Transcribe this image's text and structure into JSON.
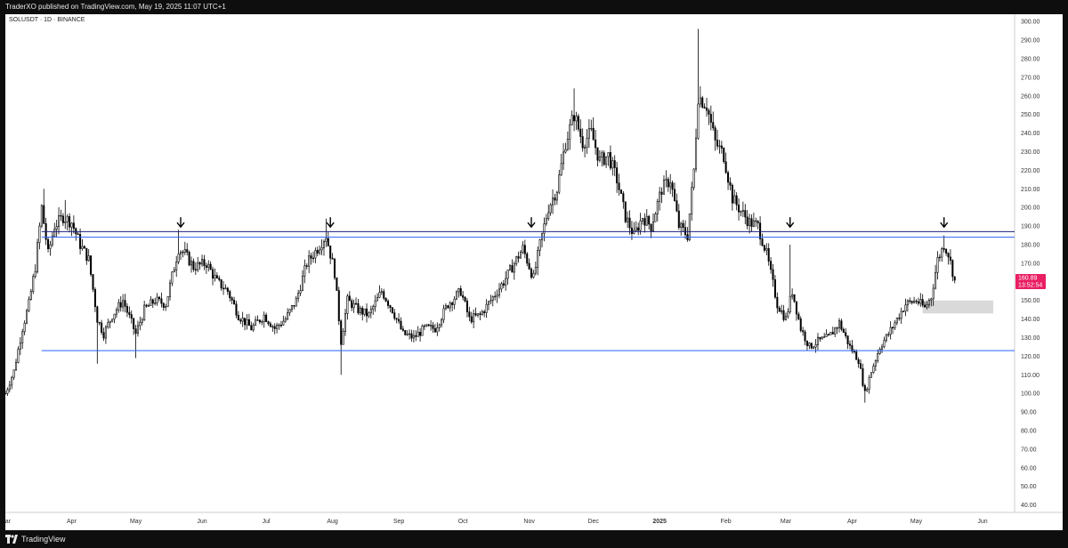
{
  "header": {
    "published": "TraderXO published on TradingView.com, May 19, 2025 11:07 UTC+1"
  },
  "footer": {
    "brand": "TradingView"
  },
  "chart_data": {
    "type": "candlestick",
    "title": "SOLUSDT · 1D · BINANCE",
    "y_ticks": [
      40,
      50,
      60,
      70,
      80,
      90,
      100,
      110,
      120,
      130,
      140,
      150,
      160,
      170,
      180,
      190,
      200,
      210,
      220,
      230,
      240,
      250,
      260,
      270,
      280,
      290,
      300
    ],
    "y_tick_labels": [
      "40.00",
      "50.00",
      "60.00",
      "70.00",
      "80.00",
      "90.00",
      "100.00",
      "110.00",
      "120.00",
      "130.00",
      "140.00",
      "150.00",
      "160.00",
      "170.00",
      "180.00",
      "190.00",
      "200.00",
      "210.00",
      "220.00",
      "230.00",
      "240.00",
      "250.00",
      "260.00",
      "270.00",
      "280.00",
      "290.00",
      "300.00"
    ],
    "ylim": [
      36,
      302
    ],
    "x_start": "2024-03-01",
    "x_end": "2025-06-16",
    "x_ticks": [
      {
        "label": "Mar",
        "date": "2024-03-01"
      },
      {
        "label": "Apr",
        "date": "2024-04-01"
      },
      {
        "label": "May",
        "date": "2024-05-01"
      },
      {
        "label": "Jun",
        "date": "2024-06-01"
      },
      {
        "label": "Jul",
        "date": "2024-07-01"
      },
      {
        "label": "Aug",
        "date": "2024-08-01"
      },
      {
        "label": "Sep",
        "date": "2024-09-01"
      },
      {
        "label": "Oct",
        "date": "2024-10-01"
      },
      {
        "label": "Nov",
        "date": "2024-11-01"
      },
      {
        "label": "Dec",
        "date": "2024-12-01"
      },
      {
        "label": "2025",
        "date": "2025-01-01"
      },
      {
        "label": "Feb",
        "date": "2025-02-01"
      },
      {
        "label": "Mar",
        "date": "2025-03-01"
      },
      {
        "label": "Apr",
        "date": "2025-04-01"
      },
      {
        "label": "May",
        "date": "2025-05-01"
      },
      {
        "label": "Jun",
        "date": "2025-06-01"
      }
    ],
    "price_path": [
      [
        "2024-03-01",
        100
      ],
      [
        "2024-03-05",
        112
      ],
      [
        "2024-03-09",
        135
      ],
      [
        "2024-03-12",
        148
      ],
      [
        "2024-03-15",
        168
      ],
      [
        "2024-03-18",
        200
      ],
      [
        "2024-03-21",
        175
      ],
      [
        "2024-03-24",
        190
      ],
      [
        "2024-03-28",
        195
      ],
      [
        "2024-04-01",
        192
      ],
      [
        "2024-04-05",
        180
      ],
      [
        "2024-04-09",
        172
      ],
      [
        "2024-04-13",
        140
      ],
      [
        "2024-04-16",
        132
      ],
      [
        "2024-04-20",
        142
      ],
      [
        "2024-04-25",
        150
      ],
      [
        "2024-05-01",
        132
      ],
      [
        "2024-05-05",
        145
      ],
      [
        "2024-05-10",
        150
      ],
      [
        "2024-05-15",
        148
      ],
      [
        "2024-05-21",
        178
      ],
      [
        "2024-05-24",
        175
      ],
      [
        "2024-05-28",
        168
      ],
      [
        "2024-06-03",
        170
      ],
      [
        "2024-06-08",
        160
      ],
      [
        "2024-06-13",
        155
      ],
      [
        "2024-06-18",
        142
      ],
      [
        "2024-06-24",
        135
      ],
      [
        "2024-06-30",
        142
      ],
      [
        "2024-07-05",
        135
      ],
      [
        "2024-07-10",
        140
      ],
      [
        "2024-07-15",
        150
      ],
      [
        "2024-07-20",
        170
      ],
      [
        "2024-07-25",
        178
      ],
      [
        "2024-07-29",
        185
      ],
      [
        "2024-08-02",
        165
      ],
      [
        "2024-08-05",
        128
      ],
      [
        "2024-08-08",
        150
      ],
      [
        "2024-08-13",
        145
      ],
      [
        "2024-08-18",
        142
      ],
      [
        "2024-08-24",
        155
      ],
      [
        "2024-08-29",
        145
      ],
      [
        "2024-09-03",
        132
      ],
      [
        "2024-09-08",
        130
      ],
      [
        "2024-09-13",
        135
      ],
      [
        "2024-09-18",
        135
      ],
      [
        "2024-09-24",
        148
      ],
      [
        "2024-09-30",
        155
      ],
      [
        "2024-10-04",
        140
      ],
      [
        "2024-10-09",
        142
      ],
      [
        "2024-10-14",
        150
      ],
      [
        "2024-10-20",
        160
      ],
      [
        "2024-10-25",
        170
      ],
      [
        "2024-10-29",
        178
      ],
      [
        "2024-11-03",
        162
      ],
      [
        "2024-11-06",
        180
      ],
      [
        "2024-11-10",
        200
      ],
      [
        "2024-11-14",
        210
      ],
      [
        "2024-11-18",
        235
      ],
      [
        "2024-11-22",
        250
      ],
      [
        "2024-11-26",
        235
      ],
      [
        "2024-11-30",
        240
      ],
      [
        "2024-12-04",
        225
      ],
      [
        "2024-12-08",
        228
      ],
      [
        "2024-12-12",
        215
      ],
      [
        "2024-12-16",
        195
      ],
      [
        "2024-12-20",
        185
      ],
      [
        "2024-12-24",
        195
      ],
      [
        "2024-12-28",
        190
      ],
      [
        "2025-01-02",
        210
      ],
      [
        "2025-01-06",
        215
      ],
      [
        "2025-01-10",
        190
      ],
      [
        "2025-01-14",
        185
      ],
      [
        "2025-01-17",
        220
      ],
      [
        "2025-01-19",
        260
      ],
      [
        "2025-01-23",
        255
      ],
      [
        "2025-01-27",
        235
      ],
      [
        "2025-01-31",
        228
      ],
      [
        "2025-02-04",
        205
      ],
      [
        "2025-02-08",
        198
      ],
      [
        "2025-02-12",
        192
      ],
      [
        "2025-02-16",
        190
      ],
      [
        "2025-02-20",
        175
      ],
      [
        "2025-02-25",
        148
      ],
      [
        "2025-03-01",
        140
      ],
      [
        "2025-03-04",
        155
      ],
      [
        "2025-03-08",
        135
      ],
      [
        "2025-03-12",
        125
      ],
      [
        "2025-03-16",
        128
      ],
      [
        "2025-03-21",
        130
      ],
      [
        "2025-03-26",
        138
      ],
      [
        "2025-03-31",
        125
      ],
      [
        "2025-04-04",
        118
      ],
      [
        "2025-04-07",
        100
      ],
      [
        "2025-04-10",
        112
      ],
      [
        "2025-04-14",
        125
      ],
      [
        "2025-04-18",
        132
      ],
      [
        "2025-04-22",
        140
      ],
      [
        "2025-04-26",
        148
      ],
      [
        "2025-05-01",
        150
      ],
      [
        "2025-05-05",
        146
      ],
      [
        "2025-05-08",
        152
      ],
      [
        "2025-05-11",
        172
      ],
      [
        "2025-05-14",
        180
      ],
      [
        "2025-05-16",
        175
      ],
      [
        "2025-05-19",
        160.89
      ]
    ],
    "horizontal_lines": [
      {
        "price": 187,
        "color": "#1a237e"
      },
      {
        "price": 184,
        "color": "#2962ff"
      },
      {
        "price": 123,
        "color": "#2962ff"
      }
    ],
    "arrows": [
      {
        "date": "2024-05-22",
        "price": 189
      },
      {
        "date": "2024-07-31",
        "price": 189
      },
      {
        "date": "2024-11-02",
        "price": 189
      },
      {
        "date": "2025-03-03",
        "price": 189
      },
      {
        "date": "2025-05-14",
        "price": 189
      }
    ],
    "zone": {
      "date_start": "2025-05-04",
      "date_end": "2025-06-06",
      "price_low": 143,
      "price_high": 150,
      "color": "#d9d9d9"
    },
    "last_price": {
      "value": "160.89",
      "countdown": "13:52:54",
      "color": "#e91e63"
    }
  }
}
